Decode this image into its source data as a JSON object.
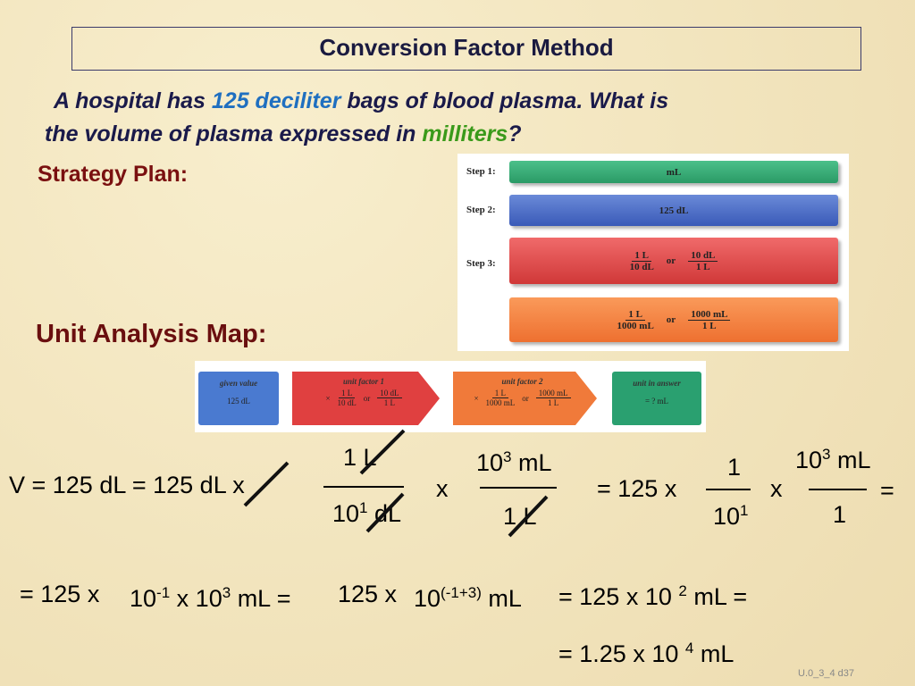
{
  "title": "Conversion Factor Method",
  "problem": {
    "part1": "A hospital has ",
    "highlight1": "125 deciliter",
    "part2": " bags of blood plasma. What is",
    "part3": "the volume of plasma expressed in ",
    "highlight2": "milliters",
    "part4": "?"
  },
  "strategy": {
    "heading": "Strategy Plan:",
    "steps": [
      {
        "label": "Step 1:",
        "content": "mL"
      },
      {
        "label": "Step 2:",
        "content": "125 dL"
      },
      {
        "label": "Step 3:",
        "left": {
          "num": "1 L",
          "den": "10 dL"
        },
        "or": "or",
        "right": {
          "num": "10 dL",
          "den": "1 L"
        }
      },
      {
        "left": {
          "num": "1 L",
          "den": "1000 mL"
        },
        "or": "or",
        "right": {
          "num": "1000 mL",
          "den": "1 L"
        }
      }
    ]
  },
  "map": {
    "heading": "Unit Analysis Map:",
    "boxes": [
      {
        "title": "given value",
        "content": "125 dL"
      },
      {
        "title": "unit factor 1",
        "times": "×",
        "left": {
          "num": "1 L",
          "den": "10 dL"
        },
        "or": "or",
        "right": {
          "num": "10 dL",
          "den": "1 L"
        }
      },
      {
        "title": "unit factor 2",
        "times": "×",
        "left": {
          "num": "1 L",
          "den": "1000 mL"
        },
        "or": "or",
        "right": {
          "num": "1000 mL",
          "den": "1 L"
        }
      },
      {
        "title": "unit in answer",
        "content": "=  ? mL"
      }
    ]
  },
  "equations": {
    "row1": {
      "lead": "V = 125 dL = 125 dL x",
      "frac1": {
        "num": "1 L",
        "den_base": "10",
        "den_sup": "1",
        "den_rest": " dL"
      },
      "times1": "x",
      "frac2": {
        "num_base": "10",
        "num_sup": "3",
        "num_rest": " mL",
        "den": "1 L"
      },
      "mid": "= 125 x",
      "frac3": {
        "num": "1",
        "den_base": "10",
        "den_sup": "1"
      },
      "times2": "x",
      "frac4": {
        "num_base": "10",
        "num_sup": "3",
        "num_rest": " mL",
        "den": "1"
      },
      "end": "="
    },
    "row2": {
      "p1": "= 125 x",
      "p2": "10",
      "p3": "-1",
      "p4": " x 10",
      "p5": "3",
      "p6": " mL =",
      "p7": "125 x",
      "p8": "10",
      "p9": "(-1+3)",
      "p10": " mL",
      "p11": "= 125 x 10 ",
      "p12": "2",
      "p13": " mL ="
    },
    "row3": {
      "p1": "= 1.25 x 10 ",
      "p2": "4",
      "p3": " mL"
    }
  },
  "footer": "U.0_3_4 d37"
}
